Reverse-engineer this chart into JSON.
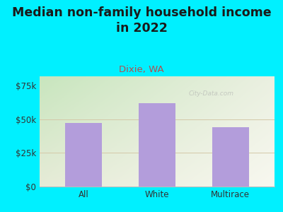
{
  "title": "Median non-family household income\nin 2022",
  "subtitle": "Dixie, WA",
  "categories": [
    "All",
    "White",
    "Multirace"
  ],
  "values": [
    47500,
    62000,
    44000
  ],
  "bar_color": "#b39ddb",
  "background_outer": "#00f0ff",
  "yticks": [
    0,
    25000,
    50000,
    75000
  ],
  "ytick_labels": [
    "$0",
    "$25k",
    "$50k",
    "$75k"
  ],
  "ylim": [
    0,
    82000
  ],
  "title_fontsize": 12.5,
  "subtitle_fontsize": 9.5,
  "tick_fontsize": 8.5,
  "title_color": "#1a1a1a",
  "subtitle_color": "#b05050",
  "tick_color": "#333333",
  "grid_color": "#d4c8a8",
  "watermark": "City-Data.com",
  "plot_bg_top_left": "#c8e6c0",
  "plot_bg_bottom_right": "#f5f5ee"
}
